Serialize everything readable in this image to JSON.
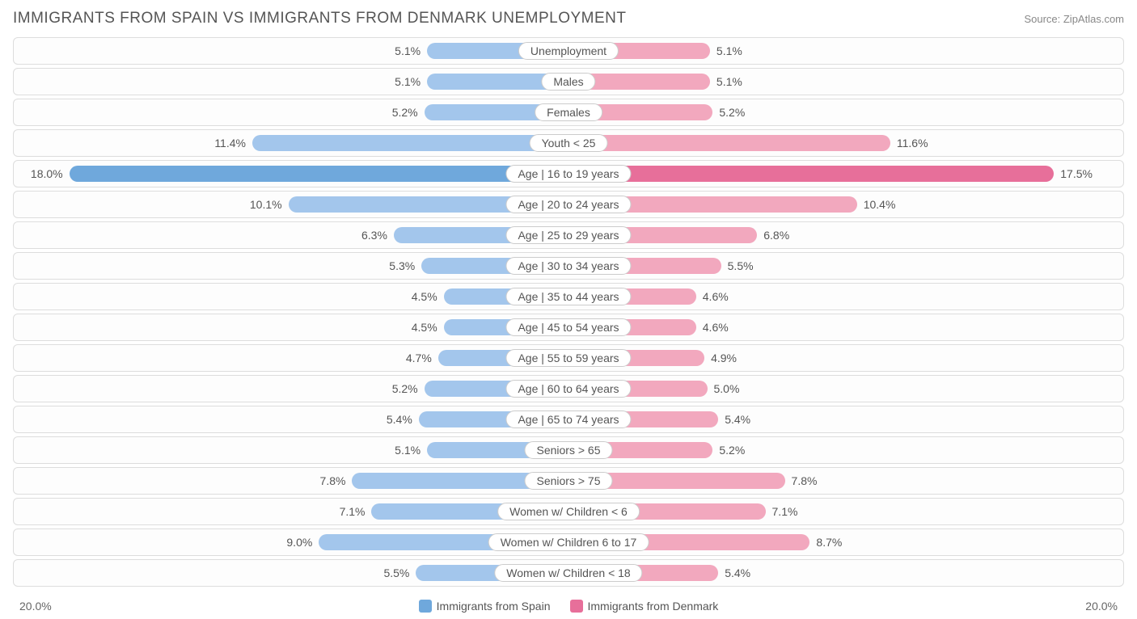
{
  "title": "IMMIGRANTS FROM SPAIN VS IMMIGRANTS FROM DENMARK UNEMPLOYMENT",
  "source": "Source: ZipAtlas.com",
  "chart": {
    "type": "diverging-bar",
    "max_pct": 20.0,
    "axis_left_label": "20.0%",
    "axis_right_label": "20.0%",
    "left_series_label": "Immigrants from Spain",
    "right_series_label": "Immigrants from Denmark",
    "left_color_light": "#a3c6ec",
    "left_color_dark": "#6fa8dc",
    "right_color_light": "#f2a8be",
    "right_color_dark": "#e76f9a",
    "row_border_color": "#dddddd",
    "background_color": "#ffffff",
    "text_color": "#555555",
    "rows": [
      {
        "label": "Unemployment",
        "left_val": 5.1,
        "left_txt": "5.1%",
        "right_val": 5.1,
        "right_txt": "5.1%",
        "highlight": false
      },
      {
        "label": "Males",
        "left_val": 5.1,
        "left_txt": "5.1%",
        "right_val": 5.1,
        "right_txt": "5.1%",
        "highlight": false
      },
      {
        "label": "Females",
        "left_val": 5.2,
        "left_txt": "5.2%",
        "right_val": 5.2,
        "right_txt": "5.2%",
        "highlight": false
      },
      {
        "label": "Youth < 25",
        "left_val": 11.4,
        "left_txt": "11.4%",
        "right_val": 11.6,
        "right_txt": "11.6%",
        "highlight": false
      },
      {
        "label": "Age | 16 to 19 years",
        "left_val": 18.0,
        "left_txt": "18.0%",
        "right_val": 17.5,
        "right_txt": "17.5%",
        "highlight": true
      },
      {
        "label": "Age | 20 to 24 years",
        "left_val": 10.1,
        "left_txt": "10.1%",
        "right_val": 10.4,
        "right_txt": "10.4%",
        "highlight": false
      },
      {
        "label": "Age | 25 to 29 years",
        "left_val": 6.3,
        "left_txt": "6.3%",
        "right_val": 6.8,
        "right_txt": "6.8%",
        "highlight": false
      },
      {
        "label": "Age | 30 to 34 years",
        "left_val": 5.3,
        "left_txt": "5.3%",
        "right_val": 5.5,
        "right_txt": "5.5%",
        "highlight": false
      },
      {
        "label": "Age | 35 to 44 years",
        "left_val": 4.5,
        "left_txt": "4.5%",
        "right_val": 4.6,
        "right_txt": "4.6%",
        "highlight": false
      },
      {
        "label": "Age | 45 to 54 years",
        "left_val": 4.5,
        "left_txt": "4.5%",
        "right_val": 4.6,
        "right_txt": "4.6%",
        "highlight": false
      },
      {
        "label": "Age | 55 to 59 years",
        "left_val": 4.7,
        "left_txt": "4.7%",
        "right_val": 4.9,
        "right_txt": "4.9%",
        "highlight": false
      },
      {
        "label": "Age | 60 to 64 years",
        "left_val": 5.2,
        "left_txt": "5.2%",
        "right_val": 5.0,
        "right_txt": "5.0%",
        "highlight": false
      },
      {
        "label": "Age | 65 to 74 years",
        "left_val": 5.4,
        "left_txt": "5.4%",
        "right_val": 5.4,
        "right_txt": "5.4%",
        "highlight": false
      },
      {
        "label": "Seniors > 65",
        "left_val": 5.1,
        "left_txt": "5.1%",
        "right_val": 5.2,
        "right_txt": "5.2%",
        "highlight": false
      },
      {
        "label": "Seniors > 75",
        "left_val": 7.8,
        "left_txt": "7.8%",
        "right_val": 7.8,
        "right_txt": "7.8%",
        "highlight": false
      },
      {
        "label": "Women w/ Children < 6",
        "left_val": 7.1,
        "left_txt": "7.1%",
        "right_val": 7.1,
        "right_txt": "7.1%",
        "highlight": false
      },
      {
        "label": "Women w/ Children 6 to 17",
        "left_val": 9.0,
        "left_txt": "9.0%",
        "right_val": 8.7,
        "right_txt": "8.7%",
        "highlight": false
      },
      {
        "label": "Women w/ Children < 18",
        "left_val": 5.5,
        "left_txt": "5.5%",
        "right_val": 5.4,
        "right_txt": "5.4%",
        "highlight": false
      }
    ]
  }
}
